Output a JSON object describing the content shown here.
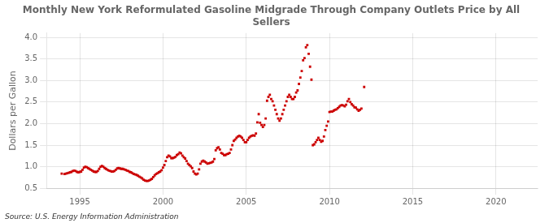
{
  "chart_data": {
    "type": "scatter",
    "title": "Monthly New York Reformulated Gasoline Midgrade Through Company Outlets Price by All\nSellers",
    "ylabel": "Dollars per Gallon",
    "source": "Source: U.S. Energy Information Administration",
    "color": "#cc0000",
    "marker": "square",
    "grid": true,
    "xlim": [
      1993.0,
      2022.5
    ],
    "ylim": [
      0.5,
      4.1
    ],
    "xticks": [
      1995,
      2000,
      2005,
      2010,
      2015,
      2020
    ],
    "yticks": [
      0.5,
      {
        "value": 1.0,
        "label": "1.0"
      },
      1.5,
      {
        "value": 2.0,
        "label": "2.0"
      },
      2.5,
      {
        "value": 3.0,
        "label": "3.0"
      },
      3.5,
      {
        "value": 4.0,
        "label": "4.0"
      }
    ],
    "x": [
      1993.917,
      1994.083,
      1994.167,
      1994.25,
      1994.333,
      1994.417,
      1994.5,
      1994.583,
      1994.667,
      1994.75,
      1994.833,
      1994.917,
      1995.0,
      1995.083,
      1995.167,
      1995.25,
      1995.333,
      1995.417,
      1995.5,
      1995.583,
      1995.667,
      1995.75,
      1995.833,
      1995.917,
      1996.0,
      1996.083,
      1996.167,
      1996.25,
      1996.333,
      1996.417,
      1996.5,
      1996.583,
      1996.667,
      1996.75,
      1996.833,
      1996.917,
      1997.0,
      1997.083,
      1997.167,
      1997.25,
      1997.333,
      1997.417,
      1997.5,
      1997.583,
      1997.667,
      1997.75,
      1997.833,
      1997.917,
      1998.0,
      1998.083,
      1998.167,
      1998.25,
      1998.333,
      1998.417,
      1998.5,
      1998.583,
      1998.667,
      1998.75,
      1998.833,
      1998.917,
      1999.0,
      1999.083,
      1999.167,
      1999.25,
      1999.333,
      1999.417,
      1999.5,
      1999.583,
      1999.667,
      1999.75,
      1999.833,
      1999.917,
      2000.0,
      2000.083,
      2000.167,
      2000.25,
      2000.333,
      2000.417,
      2000.5,
      2000.583,
      2000.667,
      2000.75,
      2000.833,
      2000.917,
      2001.0,
      2001.083,
      2001.167,
      2001.25,
      2001.333,
      2001.417,
      2001.5,
      2001.583,
      2001.667,
      2001.75,
      2001.833,
      2001.917,
      2002.0,
      2002.083,
      2002.167,
      2002.25,
      2002.333,
      2002.417,
      2002.5,
      2002.583,
      2002.667,
      2002.75,
      2002.833,
      2002.917,
      2003.0,
      2003.083,
      2003.167,
      2003.25,
      2003.333,
      2003.417,
      2003.5,
      2003.583,
      2003.667,
      2003.75,
      2003.833,
      2003.917,
      2004.0,
      2004.083,
      2004.167,
      2004.25,
      2004.333,
      2004.417,
      2004.5,
      2004.583,
      2004.667,
      2004.75,
      2004.833,
      2004.917,
      2005.0,
      2005.083,
      2005.167,
      2005.25,
      2005.333,
      2005.417,
      2005.5,
      2005.583,
      2005.667,
      2005.75,
      2005.833,
      2005.917,
      2006.0,
      2006.083,
      2006.167,
      2006.25,
      2006.333,
      2006.417,
      2006.5,
      2006.583,
      2006.667,
      2006.75,
      2006.833,
      2006.917,
      2007.0,
      2007.083,
      2007.167,
      2007.25,
      2007.333,
      2007.417,
      2007.5,
      2007.583,
      2007.667,
      2007.75,
      2007.833,
      2007.917,
      2008.0,
      2008.083,
      2008.167,
      2008.25,
      2008.333,
      2008.417,
      2008.5,
      2008.583,
      2008.667,
      2008.75,
      2008.833,
      2008.917,
      2009.0,
      2009.083,
      2009.167,
      2009.25,
      2009.333,
      2009.417,
      2009.5,
      2009.583,
      2009.667,
      2009.75,
      2009.833,
      2009.917,
      2010.0,
      2010.083,
      2010.167,
      2010.25,
      2010.333,
      2010.417,
      2010.5,
      2010.583,
      2010.667,
      2010.75,
      2010.833,
      2010.917,
      2011.0,
      2011.083,
      2011.167,
      2011.25,
      2011.333,
      2011.417,
      2011.5,
      2011.583,
      2011.667,
      2011.75,
      2011.833,
      2011.917,
      2012.083
    ],
    "values": [
      0.84,
      0.83,
      0.84,
      0.85,
      0.86,
      0.87,
      0.88,
      0.9,
      0.91,
      0.9,
      0.88,
      0.87,
      0.88,
      0.89,
      0.93,
      0.98,
      1.0,
      0.99,
      0.97,
      0.95,
      0.93,
      0.91,
      0.89,
      0.88,
      0.88,
      0.9,
      0.95,
      1.0,
      1.02,
      1.0,
      0.97,
      0.95,
      0.93,
      0.91,
      0.9,
      0.89,
      0.89,
      0.9,
      0.93,
      0.96,
      0.97,
      0.96,
      0.95,
      0.95,
      0.94,
      0.93,
      0.91,
      0.9,
      0.88,
      0.87,
      0.85,
      0.83,
      0.82,
      0.81,
      0.79,
      0.77,
      0.75,
      0.73,
      0.7,
      0.68,
      0.67,
      0.67,
      0.68,
      0.7,
      0.72,
      0.76,
      0.8,
      0.83,
      0.85,
      0.87,
      0.89,
      0.92,
      0.98,
      1.04,
      1.13,
      1.22,
      1.26,
      1.24,
      1.2,
      1.2,
      1.21,
      1.23,
      1.27,
      1.29,
      1.33,
      1.31,
      1.26,
      1.22,
      1.19,
      1.13,
      1.07,
      1.04,
      1.01,
      0.97,
      0.89,
      0.84,
      0.82,
      0.84,
      0.94,
      1.07,
      1.12,
      1.14,
      1.12,
      1.1,
      1.07,
      1.08,
      1.09,
      1.1,
      1.12,
      1.18,
      1.38,
      1.43,
      1.45,
      1.4,
      1.32,
      1.3,
      1.27,
      1.27,
      1.29,
      1.3,
      1.32,
      1.4,
      1.5,
      1.6,
      1.63,
      1.67,
      1.7,
      1.72,
      1.7,
      1.67,
      1.62,
      1.57,
      1.57,
      1.62,
      1.67,
      1.7,
      1.72,
      1.73,
      1.72,
      1.77,
      2.03,
      2.22,
      2.02,
      1.97,
      1.92,
      1.97,
      2.12,
      2.53,
      2.62,
      2.67,
      2.57,
      2.52,
      2.42,
      2.32,
      2.22,
      2.12,
      2.07,
      2.12,
      2.22,
      2.32,
      2.42,
      2.52,
      2.62,
      2.67,
      2.62,
      2.57,
      2.57,
      2.62,
      2.72,
      2.77,
      2.92,
      3.07,
      3.22,
      3.47,
      3.52,
      3.77,
      3.82,
      3.62,
      3.32,
      3.02,
      1.5,
      1.52,
      1.57,
      1.62,
      1.67,
      1.62,
      1.58,
      1.6,
      1.7,
      1.85,
      1.95,
      2.05,
      2.27,
      2.28,
      2.28,
      2.3,
      2.32,
      2.33,
      2.36,
      2.39,
      2.42,
      2.43,
      2.42,
      2.4,
      2.44,
      2.52,
      2.57,
      2.5,
      2.45,
      2.42,
      2.38,
      2.37,
      2.33,
      2.3,
      2.32,
      2.35,
      2.85
    ]
  }
}
